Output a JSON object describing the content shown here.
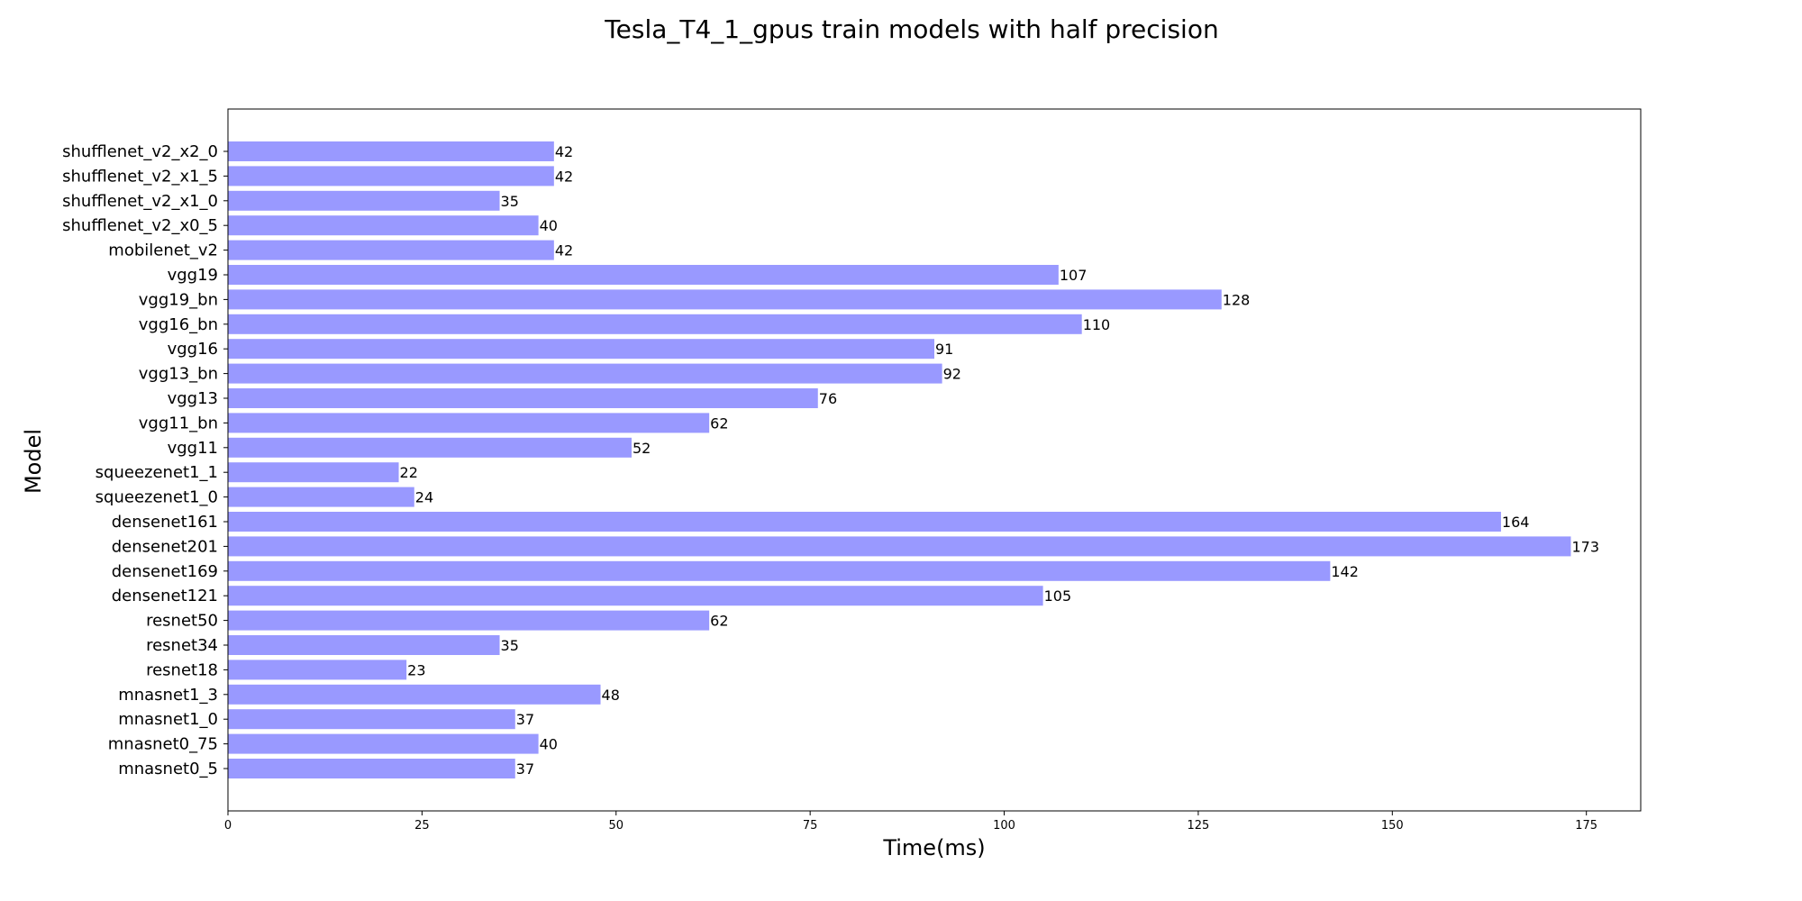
{
  "chart_data": {
    "type": "bar",
    "orientation": "horizontal",
    "title": "Tesla_T4_1_gpus train models with half precision",
    "xlabel": "Time(ms)",
    "ylabel": "Model",
    "xlim": [
      0,
      182
    ],
    "xticks": [
      0,
      25,
      50,
      75,
      100,
      125,
      150,
      175
    ],
    "grid": false,
    "bar_color": "#9999ff",
    "categories": [
      "shufflenet_v2_x2_0",
      "shufflenet_v2_x1_5",
      "shufflenet_v2_x1_0",
      "shufflenet_v2_x0_5",
      "mobilenet_v2",
      "vgg19",
      "vgg19_bn",
      "vgg16_bn",
      "vgg16",
      "vgg13_bn",
      "vgg13",
      "vgg11_bn",
      "vgg11",
      "squeezenet1_1",
      "squeezenet1_0",
      "densenet161",
      "densenet201",
      "densenet169",
      "densenet121",
      "resnet50",
      "resnet34",
      "resnet18",
      "mnasnet1_3",
      "mnasnet1_0",
      "mnasnet0_75",
      "mnasnet0_5"
    ],
    "values": [
      42,
      42,
      35,
      40,
      42,
      107,
      128,
      110,
      91,
      92,
      76,
      62,
      52,
      22,
      24,
      164,
      173,
      142,
      105,
      62,
      35,
      23,
      48,
      37,
      40,
      37
    ]
  }
}
